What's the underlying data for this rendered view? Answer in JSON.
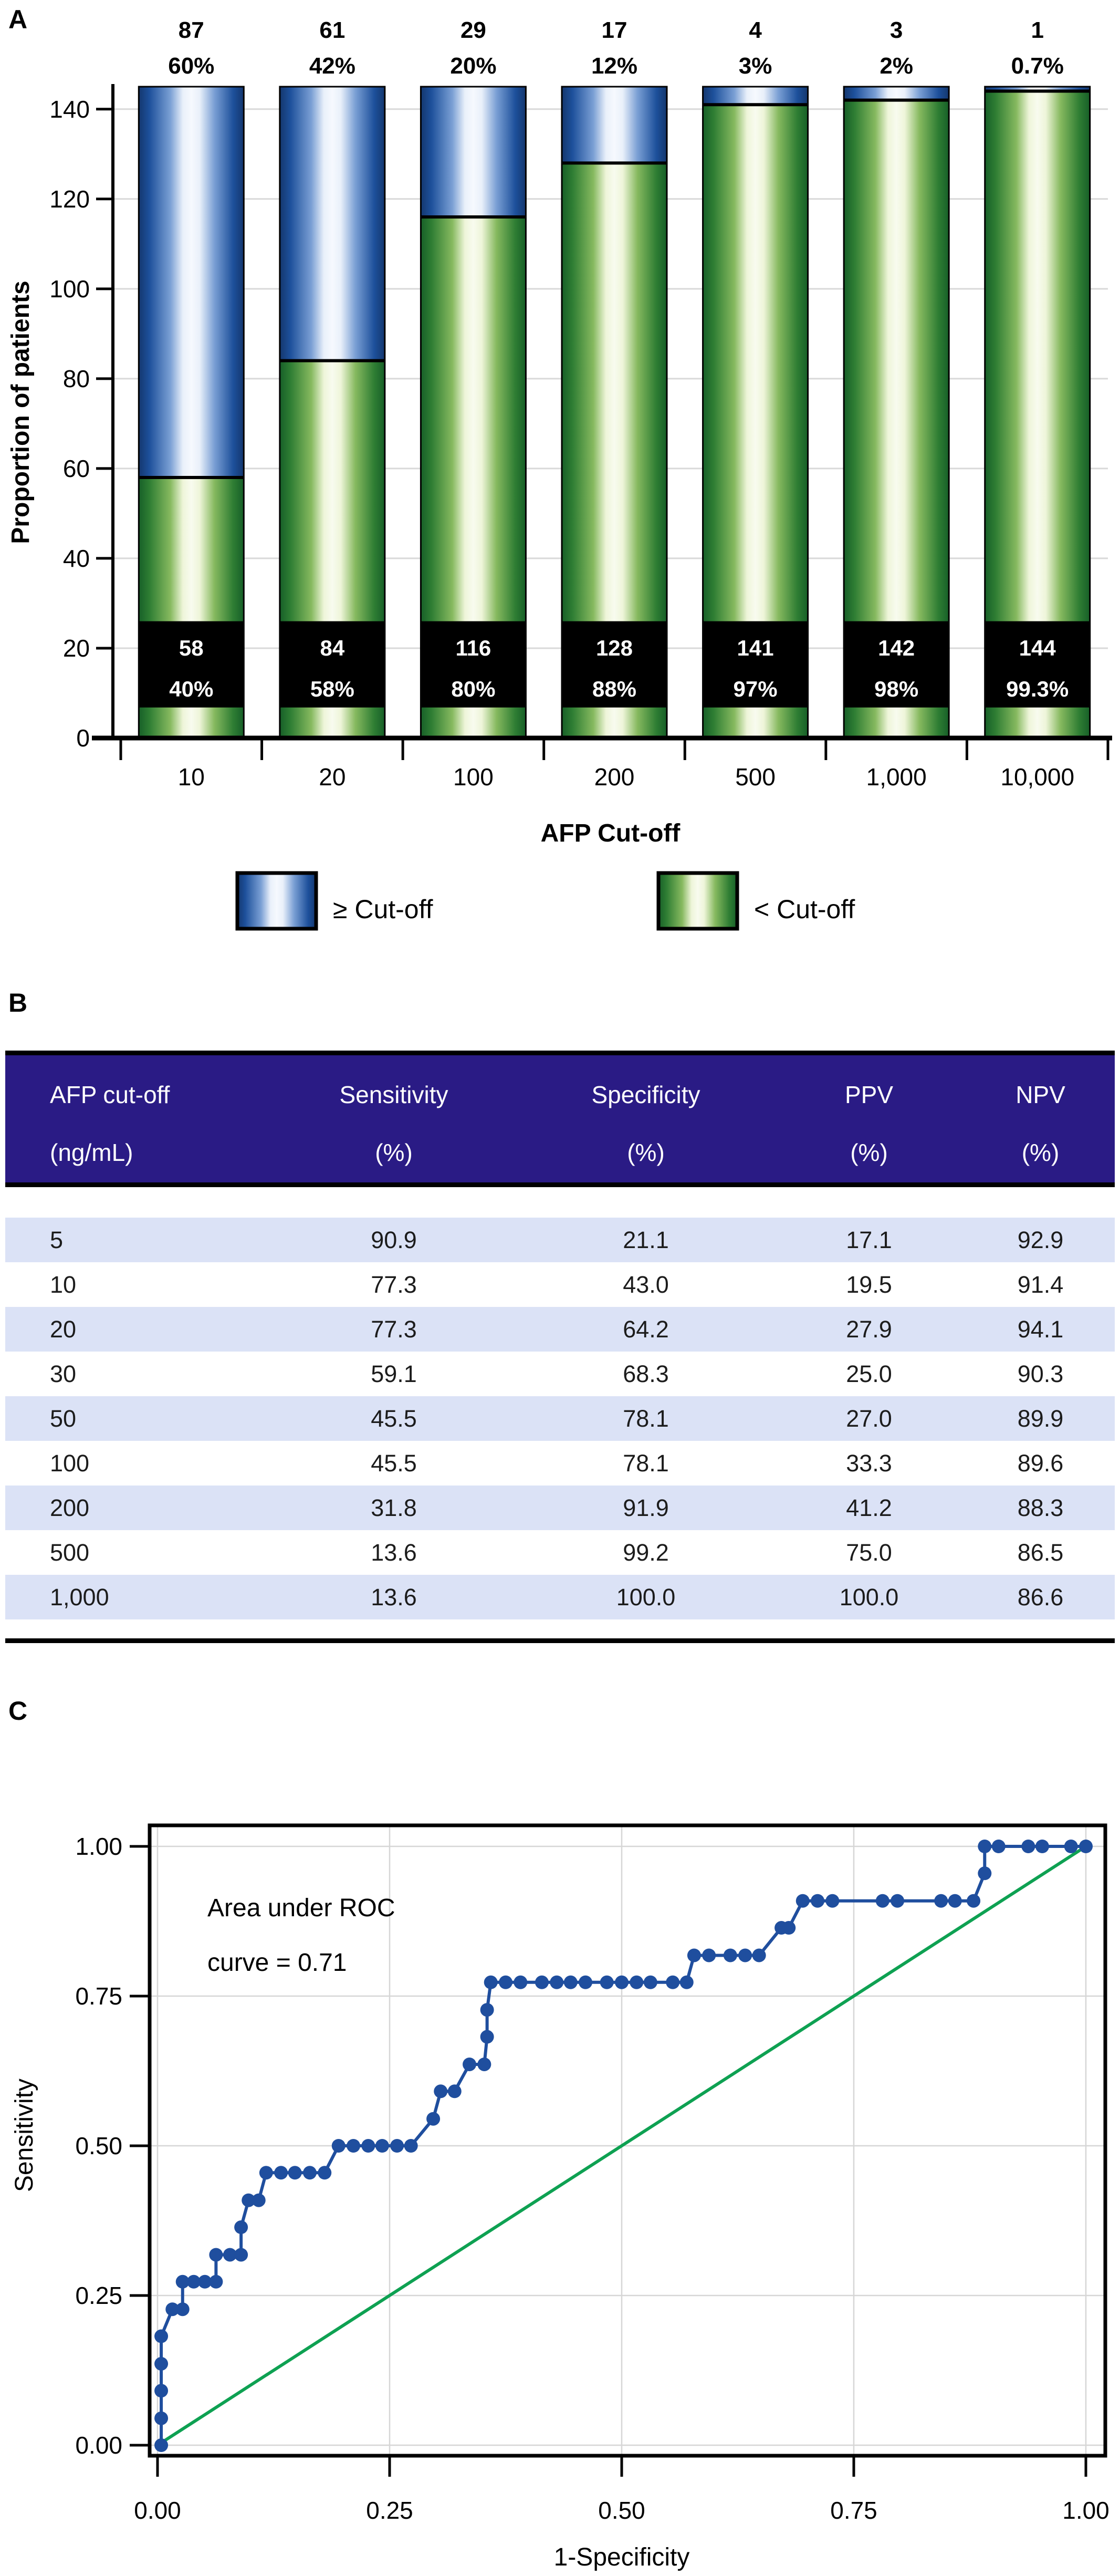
{
  "panels": {
    "a": "A",
    "b": "B",
    "c": "C"
  },
  "chart_data": [
    {
      "type": "bar",
      "subtype": "stacked-vertical",
      "title": "",
      "xlabel": "AFP Cut-off",
      "ylabel": "Proportion of patients",
      "ylim": [
        0,
        145
      ],
      "yticks": [
        0,
        20,
        40,
        60,
        80,
        100,
        120,
        140
      ],
      "grid": "horizontal-light",
      "categories": [
        "10",
        "20",
        "100",
        "200",
        "500",
        "1,000",
        "10,000"
      ],
      "series": [
        {
          "name": "< Cut-off",
          "values": [
            58,
            84,
            116,
            128,
            141,
            142,
            144
          ]
        },
        {
          "name": "≥ Cut-off",
          "values": [
            87,
            61,
            29,
            17,
            4,
            3,
            1
          ]
        }
      ],
      "below_labels": [
        {
          "count": "58",
          "pct": "40%"
        },
        {
          "count": "84",
          "pct": "58%"
        },
        {
          "count": "116",
          "pct": "80%"
        },
        {
          "count": "128",
          "pct": "88%"
        },
        {
          "count": "141",
          "pct": "97%"
        },
        {
          "count": "142",
          "pct": "98%"
        },
        {
          "count": "144",
          "pct": "99.3%"
        }
      ],
      "above_labels": [
        {
          "count": "87",
          "pct": "60%"
        },
        {
          "count": "61",
          "pct": "42%"
        },
        {
          "count": "29",
          "pct": "20%"
        },
        {
          "count": "17",
          "pct": "12%"
        },
        {
          "count": "4",
          "pct": "3%"
        },
        {
          "count": "3",
          "pct": "2%"
        },
        {
          "count": "1",
          "pct": "0.7%"
        }
      ],
      "legend": [
        {
          "label": "≥ Cut-off",
          "swatch": "blue"
        },
        {
          "label": "< Cut-off",
          "swatch": "green"
        }
      ],
      "colors": {
        "blue_dark": "#14376e",
        "blue_mid": "#1d509b",
        "blue_light": "#f6f9fe",
        "green_dark": "#175f28",
        "green_mid": "#2e7d33",
        "green_light": "#f8fbef",
        "label_box": "#000000",
        "label_text": "#ffffff",
        "gridline": "#d9d9d9"
      }
    },
    {
      "type": "line",
      "subtype": "roc-step",
      "title": "",
      "xlabel": "1-Specificity",
      "ylabel": "Sensitivity",
      "xlim": [
        0,
        1
      ],
      "ylim": [
        0,
        1
      ],
      "xticks": [
        "0.00",
        "0.25",
        "0.50",
        "0.75",
        "1.00"
      ],
      "yticks": [
        "0.00",
        "0.25",
        "0.50",
        "0.75",
        "1.00"
      ],
      "grid": "both-light",
      "legend_position": "none",
      "annotation": [
        "Area under ROC",
        "curve = 0.71"
      ],
      "auc": 0.71,
      "line_color": "#1f4e9e",
      "diagonal_color": "#0ea152",
      "diagonal": [
        [
          0,
          0
        ],
        [
          1,
          1
        ]
      ],
      "points": [
        [
          0.004,
          0.0
        ],
        [
          0.004,
          0.045
        ],
        [
          0.004,
          0.091
        ],
        [
          0.004,
          0.136
        ],
        [
          0.004,
          0.182
        ],
        [
          0.016,
          0.227
        ],
        [
          0.027,
          0.227
        ],
        [
          0.027,
          0.273
        ],
        [
          0.039,
          0.273
        ],
        [
          0.051,
          0.273
        ],
        [
          0.063,
          0.273
        ],
        [
          0.063,
          0.318
        ],
        [
          0.078,
          0.318
        ],
        [
          0.09,
          0.318
        ],
        [
          0.09,
          0.364
        ],
        [
          0.098,
          0.409
        ],
        [
          0.109,
          0.409
        ],
        [
          0.117,
          0.455
        ],
        [
          0.133,
          0.455
        ],
        [
          0.148,
          0.455
        ],
        [
          0.164,
          0.455
        ],
        [
          0.18,
          0.455
        ],
        [
          0.195,
          0.5
        ],
        [
          0.211,
          0.5
        ],
        [
          0.227,
          0.5
        ],
        [
          0.242,
          0.5
        ],
        [
          0.258,
          0.5
        ],
        [
          0.273,
          0.5
        ],
        [
          0.297,
          0.545
        ],
        [
          0.305,
          0.591
        ],
        [
          0.32,
          0.591
        ],
        [
          0.336,
          0.636
        ],
        [
          0.352,
          0.636
        ],
        [
          0.355,
          0.682
        ],
        [
          0.355,
          0.727
        ],
        [
          0.359,
          0.773
        ],
        [
          0.375,
          0.773
        ],
        [
          0.391,
          0.773
        ],
        [
          0.414,
          0.773
        ],
        [
          0.43,
          0.773
        ],
        [
          0.445,
          0.773
        ],
        [
          0.461,
          0.773
        ],
        [
          0.484,
          0.773
        ],
        [
          0.5,
          0.773
        ],
        [
          0.516,
          0.773
        ],
        [
          0.531,
          0.773
        ],
        [
          0.555,
          0.773
        ],
        [
          0.57,
          0.773
        ],
        [
          0.578,
          0.818
        ],
        [
          0.594,
          0.818
        ],
        [
          0.617,
          0.818
        ],
        [
          0.633,
          0.818
        ],
        [
          0.648,
          0.818
        ],
        [
          0.672,
          0.864
        ],
        [
          0.68,
          0.864
        ],
        [
          0.695,
          0.909
        ],
        [
          0.711,
          0.909
        ],
        [
          0.727,
          0.909
        ],
        [
          0.781,
          0.909
        ],
        [
          0.797,
          0.909
        ],
        [
          0.844,
          0.909
        ],
        [
          0.859,
          0.909
        ],
        [
          0.879,
          0.909
        ],
        [
          0.891,
          0.955
        ],
        [
          0.891,
          1.0
        ],
        [
          0.906,
          1.0
        ],
        [
          0.938,
          1.0
        ],
        [
          0.953,
          1.0
        ],
        [
          0.984,
          1.0
        ],
        [
          1.0,
          1.0
        ]
      ]
    }
  ],
  "table": {
    "header_bg": "#2a1b85",
    "row_alt_bg": "#dbe2f6",
    "headers": [
      [
        "AFP cut-off",
        "(ng/mL)"
      ],
      [
        "Sensitivity",
        "(%)"
      ],
      [
        "Specificity",
        "(%)"
      ],
      [
        "PPV",
        "(%)"
      ],
      [
        "NPV",
        "(%)"
      ]
    ],
    "rows": [
      [
        "5",
        "90.9",
        "21.1",
        "17.1",
        "92.9"
      ],
      [
        "10",
        "77.3",
        "43.0",
        "19.5",
        "91.4"
      ],
      [
        "20",
        "77.3",
        "64.2",
        "27.9",
        "94.1"
      ],
      [
        "30",
        "59.1",
        "68.3",
        "25.0",
        "90.3"
      ],
      [
        "50",
        "45.5",
        "78.1",
        "27.0",
        "89.9"
      ],
      [
        "100",
        "45.5",
        "78.1",
        "33.3",
        "89.6"
      ],
      [
        "200",
        "31.8",
        "91.9",
        "41.2",
        "88.3"
      ],
      [
        "500",
        "13.6",
        "99.2",
        "75.0",
        "86.5"
      ],
      [
        "1,000",
        "13.6",
        "100.0",
        "100.0",
        "86.6"
      ]
    ]
  }
}
